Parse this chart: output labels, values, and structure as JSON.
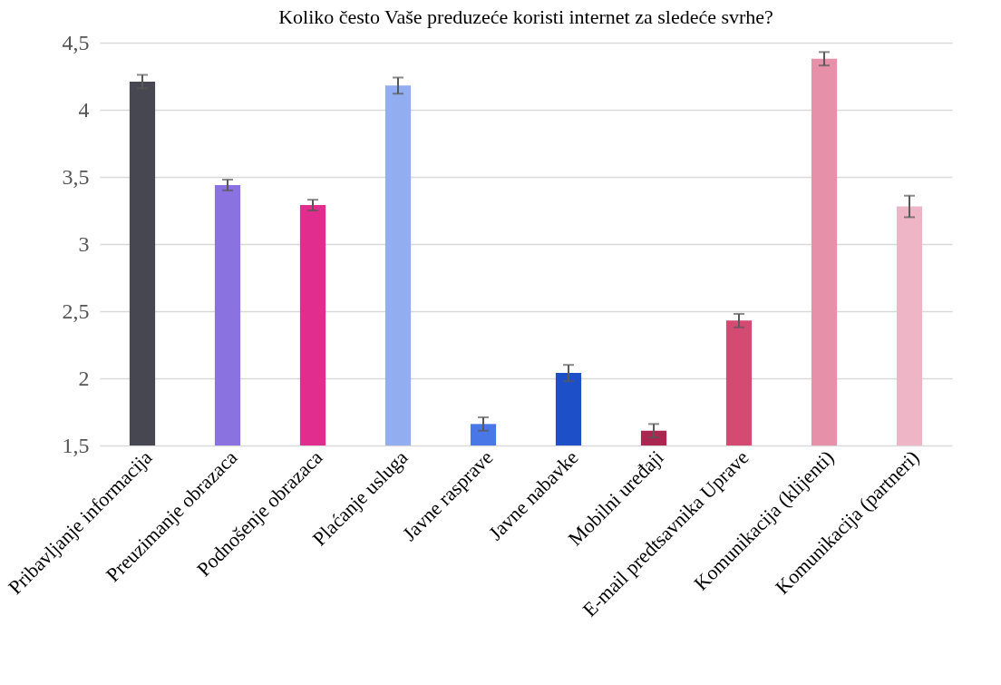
{
  "chart_data": {
    "type": "bar",
    "title": "Koliko često Vaše preduzeće koristi internet za sledeće svrhe?",
    "categories": [
      "Pribavljanje informacija",
      "Preuzimanje obrazaca",
      "Podnošenje obrazaca",
      "Plaćanje usluga",
      "Javne rasprave",
      "Javne nabavke",
      "Mobilni uređaji",
      "E-mail predtsavnika Uprave",
      "Komunikacija (klijenti)",
      "Komunikacija (partneri)"
    ],
    "values": [
      4.21,
      3.44,
      3.29,
      4.18,
      1.66,
      2.04,
      1.61,
      2.43,
      4.38,
      3.28
    ],
    "errors": [
      0.05,
      0.04,
      0.04,
      0.06,
      0.05,
      0.06,
      0.05,
      0.05,
      0.05,
      0.08
    ],
    "colors": [
      "#474751",
      "#8a73e0",
      "#e12d8e",
      "#92aef0",
      "#4a77e8",
      "#1c4fc8",
      "#ab2651",
      "#d54a73",
      "#e690aa",
      "#edb5c6"
    ],
    "ylim": [
      1.5,
      4.5
    ],
    "yticks": [
      {
        "value": 1.5,
        "label": "1,5"
      },
      2,
      {
        "value": 2.5,
        "label": "2,5"
      },
      3,
      {
        "value": 3.5,
        "label": "3,5"
      },
      4,
      {
        "value": 4.5,
        "label": "4,5"
      }
    ],
    "grid": "y"
  }
}
